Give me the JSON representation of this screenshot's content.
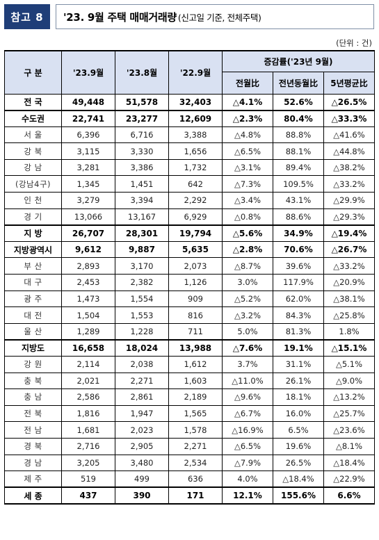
{
  "header": {
    "tag": "참고 8",
    "title": "'23. 9월 주택 매매거래량",
    "subtitle": "(신고일 기준, 전체주택)"
  },
  "unit": "(단위 : 건)",
  "table": {
    "headers": {
      "region": "구 분",
      "c1": "'23.9월",
      "c2": "'23.8월",
      "c3": "'22.9월",
      "group": "증감률('23년 9월)",
      "g1": "전월比",
      "g2": "전년동월比",
      "g3": "5년평균比"
    },
    "rows": [
      {
        "label": "전 국",
        "v1": "49,448",
        "v2": "51,578",
        "v3": "32,403",
        "m": "△4.1%",
        "y": "52.6%",
        "f": "△26.5%",
        "style": "bold sep-bottom"
      },
      {
        "label": "수도권",
        "v1": "22,741",
        "v2": "23,277",
        "v3": "12,609",
        "m": "△2.3%",
        "y": "80.4%",
        "f": "△33.3%",
        "style": "bold"
      },
      {
        "label": "서 울",
        "v1": "6,396",
        "v2": "6,716",
        "v3": "3,388",
        "m": "△4.8%",
        "y": "88.8%",
        "f": "△41.6%",
        "style": "sub"
      },
      {
        "label": "강 북",
        "v1": "3,115",
        "v2": "3,330",
        "v3": "1,656",
        "m": "△6.5%",
        "y": "88.1%",
        "f": "△44.8%",
        "style": "sub"
      },
      {
        "label": "강 남",
        "v1": "3,281",
        "v2": "3,386",
        "v3": "1,732",
        "m": "△3.1%",
        "y": "89.4%",
        "f": "△38.2%",
        "style": "sub"
      },
      {
        "label": "(강남4구)",
        "v1": "1,345",
        "v2": "1,451",
        "v3": "642",
        "m": "△7.3%",
        "y": "109.5%",
        "f": "△33.2%",
        "style": "sub"
      },
      {
        "label": "인 천",
        "v1": "3,279",
        "v2": "3,394",
        "v3": "2,292",
        "m": "△3.4%",
        "y": "43.1%",
        "f": "△29.9%",
        "style": "sub"
      },
      {
        "label": "경 기",
        "v1": "13,066",
        "v2": "13,167",
        "v3": "6,929",
        "m": "△0.8%",
        "y": "88.6%",
        "f": "△29.3%",
        "style": "sub sep-bottom"
      },
      {
        "label": "지 방",
        "v1": "26,707",
        "v2": "28,301",
        "v3": "19,794",
        "m": "△5.6%",
        "y": "34.9%",
        "f": "△19.4%",
        "style": "bold"
      },
      {
        "label": "지방광역시",
        "v1": "9,612",
        "v2": "9,887",
        "v3": "5,635",
        "m": "△2.8%",
        "y": "70.6%",
        "f": "△26.7%",
        "style": "bold"
      },
      {
        "label": "부 산",
        "v1": "2,893",
        "v2": "3,170",
        "v3": "2,073",
        "m": "△8.7%",
        "y": "39.6%",
        "f": "△33.2%",
        "style": "sub"
      },
      {
        "label": "대 구",
        "v1": "2,453",
        "v2": "2,382",
        "v3": "1,126",
        "m": "3.0%",
        "y": "117.9%",
        "f": "△20.9%",
        "style": "sub"
      },
      {
        "label": "광 주",
        "v1": "1,473",
        "v2": "1,554",
        "v3": "909",
        "m": "△5.2%",
        "y": "62.0%",
        "f": "△38.1%",
        "style": "sub"
      },
      {
        "label": "대 전",
        "v1": "1,504",
        "v2": "1,553",
        "v3": "816",
        "m": "△3.2%",
        "y": "84.3%",
        "f": "△25.8%",
        "style": "sub"
      },
      {
        "label": "울 산",
        "v1": "1,289",
        "v2": "1,228",
        "v3": "711",
        "m": "5.0%",
        "y": "81.3%",
        "f": "1.8%",
        "style": "sub sep-bottom"
      },
      {
        "label": "지방도",
        "v1": "16,658",
        "v2": "18,024",
        "v3": "13,988",
        "m": "△7.6%",
        "y": "19.1%",
        "f": "△15.1%",
        "style": "bold"
      },
      {
        "label": "강 원",
        "v1": "2,114",
        "v2": "2,038",
        "v3": "1,612",
        "m": "3.7%",
        "y": "31.1%",
        "f": "△5.1%",
        "style": "sub"
      },
      {
        "label": "충 북",
        "v1": "2,021",
        "v2": "2,271",
        "v3": "1,603",
        "m": "△11.0%",
        "y": "26.1%",
        "f": "△9.0%",
        "style": "sub"
      },
      {
        "label": "충 남",
        "v1": "2,586",
        "v2": "2,861",
        "v3": "2,189",
        "m": "△9.6%",
        "y": "18.1%",
        "f": "△13.2%",
        "style": "sub"
      },
      {
        "label": "전 북",
        "v1": "1,816",
        "v2": "1,947",
        "v3": "1,565",
        "m": "△6.7%",
        "y": "16.0%",
        "f": "△25.7%",
        "style": "sub"
      },
      {
        "label": "전 남",
        "v1": "1,681",
        "v2": "2,023",
        "v3": "1,578",
        "m": "△16.9%",
        "y": "6.5%",
        "f": "△23.6%",
        "style": "sub"
      },
      {
        "label": "경 북",
        "v1": "2,716",
        "v2": "2,905",
        "v3": "2,271",
        "m": "△6.5%",
        "y": "19.6%",
        "f": "△8.1%",
        "style": "sub"
      },
      {
        "label": "경 남",
        "v1": "3,205",
        "v2": "3,480",
        "v3": "2,534",
        "m": "△7.9%",
        "y": "26.5%",
        "f": "△18.4%",
        "style": "sub"
      },
      {
        "label": "제 주",
        "v1": "519",
        "v2": "499",
        "v3": "636",
        "m": "4.0%",
        "y": "△18.4%",
        "f": "△22.9%",
        "style": "sub sep-bottom"
      },
      {
        "label": "세 종",
        "v1": "437",
        "v2": "390",
        "v3": "171",
        "m": "12.1%",
        "y": "155.6%",
        "f": "6.6%",
        "style": "total"
      }
    ]
  }
}
